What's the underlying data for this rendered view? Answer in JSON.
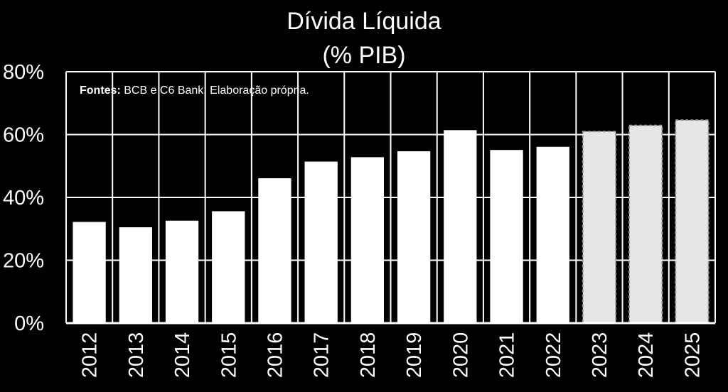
{
  "chart_data": {
    "type": "bar",
    "title": "Dívida Líquida",
    "subtitle": "(% PIB)",
    "categories": [
      "2012",
      "2013",
      "2014",
      "2015",
      "2016",
      "2017",
      "2018",
      "2019",
      "2020",
      "2021",
      "2022",
      "2023",
      "2024",
      "2025"
    ],
    "values": [
      32.2,
      30.5,
      32.6,
      35.6,
      46.1,
      51.4,
      52.8,
      54.7,
      61.4,
      55.1,
      56.1,
      61.0,
      62.9,
      64.6
    ],
    "projected": [
      false,
      false,
      false,
      false,
      false,
      false,
      false,
      false,
      false,
      false,
      false,
      true,
      true,
      true
    ],
    "ylim": [
      0,
      80
    ],
    "yticks": [
      "0%",
      "20%",
      "40%",
      "60%",
      "80%"
    ],
    "ytick_values": [
      0,
      20,
      40,
      60,
      80
    ],
    "grid": true,
    "note_bold": "Fontes:",
    "note_text": " BCB e C6 Bank. Elaboração própria."
  },
  "colors": {
    "background": "#000000",
    "bar": "#ffffff",
    "bar_projected": "#e6e6e6",
    "grid": "#ffffff"
  }
}
